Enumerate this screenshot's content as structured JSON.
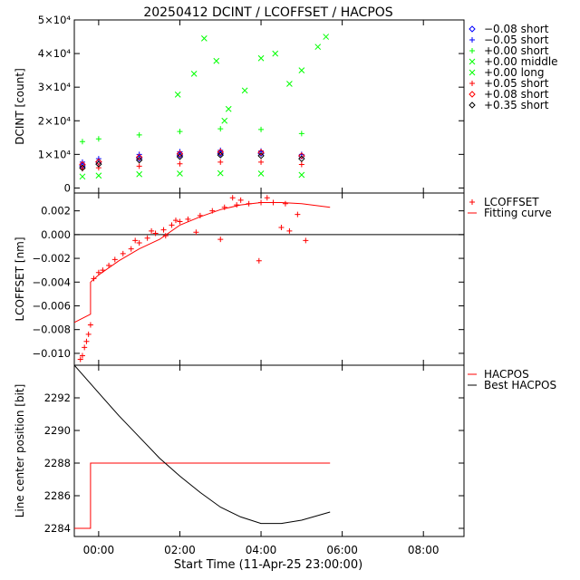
{
  "title": "20250412  DCINT / LCOFFSET / HACPOS",
  "xlabel": "Start Time (11-Apr-25 23:00:00)",
  "x_ticks": [
    {
      "h": 0,
      "label": "00:00"
    },
    {
      "h": 2,
      "label": "02:00"
    },
    {
      "h": 4,
      "label": "04:00"
    },
    {
      "h": 6,
      "label": "06:00"
    },
    {
      "h": 8,
      "label": "08:00"
    }
  ],
  "xlim": [
    -0.6,
    9.0
  ],
  "chart_data": [
    {
      "type": "scatter",
      "ylabel": "DCINT [count]",
      "ylim": [
        -1500,
        50000
      ],
      "y_ticks": [
        {
          "v": 0,
          "label": "0"
        },
        {
          "v": 10000,
          "label": "1×10⁴"
        },
        {
          "v": 20000,
          "label": "2×10⁴"
        },
        {
          "v": 30000,
          "label": "3×10⁴"
        },
        {
          "v": 40000,
          "label": "4×10⁴"
        },
        {
          "v": 50000,
          "label": "5×10⁴"
        }
      ],
      "series": [
        {
          "name": "−0.08 short",
          "symbol": "◇",
          "color": "#0000ff",
          "points": [
            [
              -0.4,
              6600
            ],
            [
              0,
              7700
            ],
            [
              1,
              8900
            ],
            [
              2,
              9800
            ],
            [
              3,
              10300
            ],
            [
              4,
              10300
            ],
            [
              5,
              9500
            ]
          ]
        },
        {
          "name": "−0.05 short",
          "symbol": "+",
          "color": "#0000ff",
          "points": [
            [
              -0.4,
              7700
            ],
            [
              0,
              8700
            ],
            [
              1,
              10000
            ],
            [
              2,
              10800
            ],
            [
              3,
              11200
            ],
            [
              4,
              11000
            ],
            [
              5,
              10000
            ]
          ]
        },
        {
          "name": "+0.00 short",
          "symbol": "+",
          "color": "#00ff00",
          "points": [
            [
              -0.4,
              13800
            ],
            [
              0,
              14600
            ],
            [
              1,
              15800
            ],
            [
              2,
              16800
            ],
            [
              3,
              17600
            ],
            [
              4,
              17400
            ],
            [
              5,
              16200
            ]
          ]
        },
        {
          "name": "+0.00 middle",
          "symbol": "×",
          "color": "#00ff00",
          "points": [
            [
              -0.4,
              3400
            ],
            [
              0,
              3700
            ],
            [
              1,
              4100
            ],
            [
              2,
              4300
            ],
            [
              3,
              4400
            ],
            [
              4,
              4300
            ],
            [
              5,
              3900
            ]
          ]
        },
        {
          "name": "+0.00 long",
          "symbol": "×",
          "color": "#00ff00",
          "points": [
            [
              1.95,
              27800
            ],
            [
              2.35,
              34000
            ],
            [
              2.6,
              44500
            ],
            [
              2.9,
              37800
            ],
            [
              3.1,
              20000
            ],
            [
              3.2,
              23500
            ],
            [
              3.6,
              29000
            ],
            [
              4.0,
              38600
            ],
            [
              4.35,
              40000
            ],
            [
              4.7,
              31000
            ],
            [
              5.0,
              35000
            ],
            [
              5.4,
              42000
            ],
            [
              5.6,
              45000
            ]
          ]
        },
        {
          "name": "+0.05 short",
          "symbol": "+",
          "color": "#ff0000",
          "points": [
            [
              -0.4,
              5700
            ],
            [
              0,
              6000
            ],
            [
              1,
              6500
            ],
            [
              2,
              7200
            ],
            [
              3,
              7700
            ],
            [
              4,
              7700
            ],
            [
              5,
              7000
            ]
          ]
        },
        {
          "name": "+0.08 short",
          "symbol": "◇",
          "color": "#ff0000",
          "points": [
            [
              -0.4,
              7000
            ],
            [
              0,
              7800
            ],
            [
              1,
              9200
            ],
            [
              2,
              10200
            ],
            [
              3,
              10700
            ],
            [
              4,
              10600
            ],
            [
              5,
              9600
            ]
          ]
        },
        {
          "name": "+0.35 short",
          "symbol": "◇",
          "color": "#000000",
          "points": [
            [
              -0.4,
              6000
            ],
            [
              0,
              7100
            ],
            [
              1,
              8300
            ],
            [
              2,
              9300
            ],
            [
              3,
              9800
            ],
            [
              4,
              9600
            ],
            [
              5,
              8700
            ]
          ]
        }
      ]
    },
    {
      "type": "scatter",
      "ylabel": "LCOFFSET [nm]",
      "ylim": [
        -0.011,
        0.0035
      ],
      "y_ticks": [
        {
          "v": -0.01,
          "label": "−0.010"
        },
        {
          "v": -0.008,
          "label": "−0.008"
        },
        {
          "v": -0.006,
          "label": "−0.006"
        },
        {
          "v": -0.004,
          "label": "−0.004"
        },
        {
          "v": -0.002,
          "label": "−0.002"
        },
        {
          "v": 0.0,
          "label": "0.000"
        },
        {
          "v": 0.002,
          "label": "0.002"
        }
      ],
      "zero_line": true,
      "series": [
        {
          "name": "LCOFFSET",
          "symbol": "+",
          "color": "#ff0000",
          "points": [
            [
              -0.45,
              -0.0105
            ],
            [
              -0.4,
              -0.0102
            ],
            [
              -0.35,
              -0.0095
            ],
            [
              -0.3,
              -0.009
            ],
            [
              -0.25,
              -0.0084
            ],
            [
              -0.2,
              -0.0076
            ],
            [
              -0.12,
              -0.0037
            ],
            [
              0,
              -0.0032
            ],
            [
              0.1,
              -0.003
            ],
            [
              0.25,
              -0.0026
            ],
            [
              0.4,
              -0.0021
            ],
            [
              0.6,
              -0.0016
            ],
            [
              0.8,
              -0.0012
            ],
            [
              1.0,
              -0.0007
            ],
            [
              1.2,
              -0.0003
            ],
            [
              1.4,
              0.0001
            ],
            [
              1.6,
              0.0004
            ],
            [
              1.8,
              0.0008
            ],
            [
              2.0,
              0.0011
            ],
            [
              2.2,
              0.0013
            ],
            [
              2.5,
              0.0016
            ],
            [
              2.8,
              0.002
            ],
            [
              3.1,
              0.0023
            ],
            [
              3.4,
              0.0025
            ],
            [
              3.7,
              0.0026
            ],
            [
              4.0,
              0.0027
            ],
            [
              4.3,
              0.0027
            ],
            [
              4.6,
              0.0026
            ],
            [
              0.9,
              -0.0005
            ],
            [
              1.3,
              0.0003
            ],
            [
              1.65,
              -0.0001
            ],
            [
              1.9,
              0.0012
            ],
            [
              2.4,
              0.0002
            ],
            [
              3.0,
              -0.0004
            ],
            [
              3.3,
              0.0031
            ],
            [
              3.5,
              0.0029
            ],
            [
              3.95,
              -0.0022
            ],
            [
              4.15,
              0.0031
            ],
            [
              4.5,
              0.0006
            ],
            [
              4.7,
              0.0003
            ],
            [
              4.9,
              0.0017
            ],
            [
              5.1,
              -0.0005
            ]
          ]
        },
        {
          "name": "Fitting curve",
          "type": "line",
          "color": "#ff0000",
          "points": [
            [
              -0.6,
              -0.0074
            ],
            [
              -0.2,
              -0.0067
            ],
            [
              -0.2,
              -0.004
            ],
            [
              0,
              -0.0034
            ],
            [
              0.5,
              -0.0022
            ],
            [
              1.0,
              -0.0012
            ],
            [
              1.5,
              -0.0004
            ],
            [
              2.0,
              0.0008
            ],
            [
              2.5,
              0.0015
            ],
            [
              3.0,
              0.0021
            ],
            [
              3.5,
              0.0025
            ],
            [
              4.0,
              0.0027
            ],
            [
              4.5,
              0.0027
            ],
            [
              5.0,
              0.0026
            ],
            [
              5.7,
              0.0023
            ]
          ]
        }
      ]
    },
    {
      "type": "line",
      "ylabel": "Line center position [bit]",
      "ylim": [
        2283.5,
        2294
      ],
      "y_ticks": [
        {
          "v": 2284,
          "label": "2284"
        },
        {
          "v": 2286,
          "label": "2286"
        },
        {
          "v": 2288,
          "label": "2288"
        },
        {
          "v": 2290,
          "label": "2290"
        },
        {
          "v": 2292,
          "label": "2292"
        }
      ],
      "series": [
        {
          "name": "HACPOS",
          "color": "#ff0000",
          "points": [
            [
              -0.6,
              2284
            ],
            [
              -0.2,
              2284
            ],
            [
              -0.2,
              2288
            ],
            [
              5.7,
              2288
            ]
          ]
        },
        {
          "name": "Best HACPOS",
          "color": "#000000",
          "points": [
            [
              -0.6,
              2294
            ],
            [
              0,
              2292.3
            ],
            [
              0.5,
              2290.9
            ],
            [
              1.0,
              2289.6
            ],
            [
              1.5,
              2288.3
            ],
            [
              2.0,
              2287.2
            ],
            [
              2.5,
              2286.2
            ],
            [
              3.0,
              2285.3
            ],
            [
              3.5,
              2284.7
            ],
            [
              4.0,
              2284.3
            ],
            [
              4.5,
              2284.3
            ],
            [
              5.0,
              2284.5
            ],
            [
              5.7,
              2285
            ]
          ]
        }
      ]
    }
  ]
}
